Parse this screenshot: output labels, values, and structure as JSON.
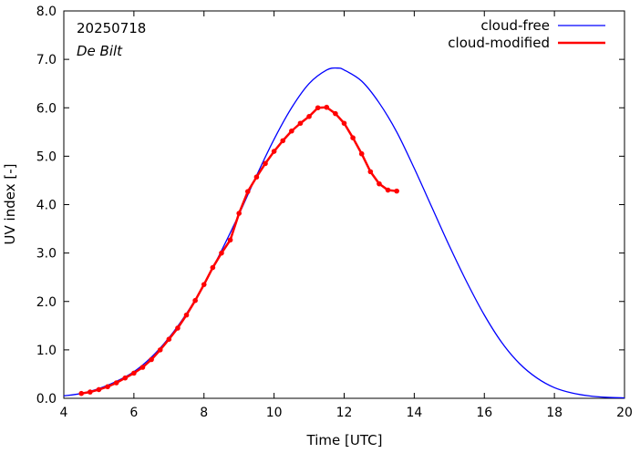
{
  "chart_data": {
    "type": "line",
    "annotations": {
      "date": "20250718",
      "location": "De Bilt"
    },
    "xlabel": "Time  [UTC]",
    "ylabel": "UV index  [-]",
    "xlim": [
      4,
      20
    ],
    "ylim": [
      0,
      8
    ],
    "x_ticks": [
      4,
      6,
      8,
      10,
      12,
      14,
      16,
      18,
      20
    ],
    "y_ticks": [
      0,
      1,
      2,
      3,
      4,
      5,
      6,
      7,
      8
    ],
    "x_tick_labels": [
      "4",
      "6",
      "8",
      "10",
      "12",
      "14",
      "16",
      "18",
      "20"
    ],
    "y_tick_labels": [
      "0.0",
      "1.0",
      "2.0",
      "3.0",
      "4.0",
      "5.0",
      "6.0",
      "7.0",
      "8.0"
    ],
    "grid": false,
    "legend_position": "top-right",
    "series": [
      {
        "name": "cloud-free",
        "color": "#0000ff",
        "markers": false,
        "x": [
          4.0,
          4.5,
          5.0,
          5.5,
          6.0,
          6.5,
          7.0,
          7.5,
          8.0,
          8.5,
          9.0,
          9.5,
          10.0,
          10.5,
          11.0,
          11.5,
          11.8,
          12.0,
          12.5,
          13.0,
          13.5,
          14.0,
          14.5,
          15.0,
          15.5,
          16.0,
          16.5,
          17.0,
          17.5,
          18.0,
          18.5,
          19.0,
          19.5,
          20.0
        ],
        "y": [
          0.05,
          0.1,
          0.2,
          0.35,
          0.55,
          0.85,
          1.25,
          1.75,
          2.35,
          3.05,
          3.8,
          4.6,
          5.35,
          6.0,
          6.5,
          6.78,
          6.82,
          6.78,
          6.55,
          6.1,
          5.5,
          4.75,
          3.95,
          3.15,
          2.4,
          1.72,
          1.15,
          0.72,
          0.42,
          0.22,
          0.11,
          0.05,
          0.02,
          0.01
        ]
      },
      {
        "name": "cloud-modified",
        "color": "#ff0000",
        "markers": true,
        "x": [
          4.5,
          4.75,
          5.0,
          5.25,
          5.5,
          5.75,
          6.0,
          6.25,
          6.5,
          6.75,
          7.0,
          7.25,
          7.5,
          7.75,
          8.0,
          8.25,
          8.5,
          8.75,
          9.0,
          9.25,
          9.5,
          9.75,
          10.0,
          10.25,
          10.5,
          10.75,
          11.0,
          11.25,
          11.5,
          11.75,
          12.0,
          12.25,
          12.5,
          12.75,
          13.0,
          13.25,
          13.5
        ],
        "y": [
          0.1,
          0.13,
          0.18,
          0.24,
          0.32,
          0.42,
          0.52,
          0.64,
          0.8,
          1.0,
          1.22,
          1.45,
          1.72,
          2.02,
          2.35,
          2.7,
          3.0,
          3.27,
          3.82,
          4.27,
          4.57,
          4.85,
          5.1,
          5.32,
          5.52,
          5.68,
          5.82,
          6.0,
          6.01,
          5.88,
          5.68,
          5.38,
          5.05,
          4.68,
          4.43,
          4.3,
          4.28
        ]
      }
    ]
  }
}
